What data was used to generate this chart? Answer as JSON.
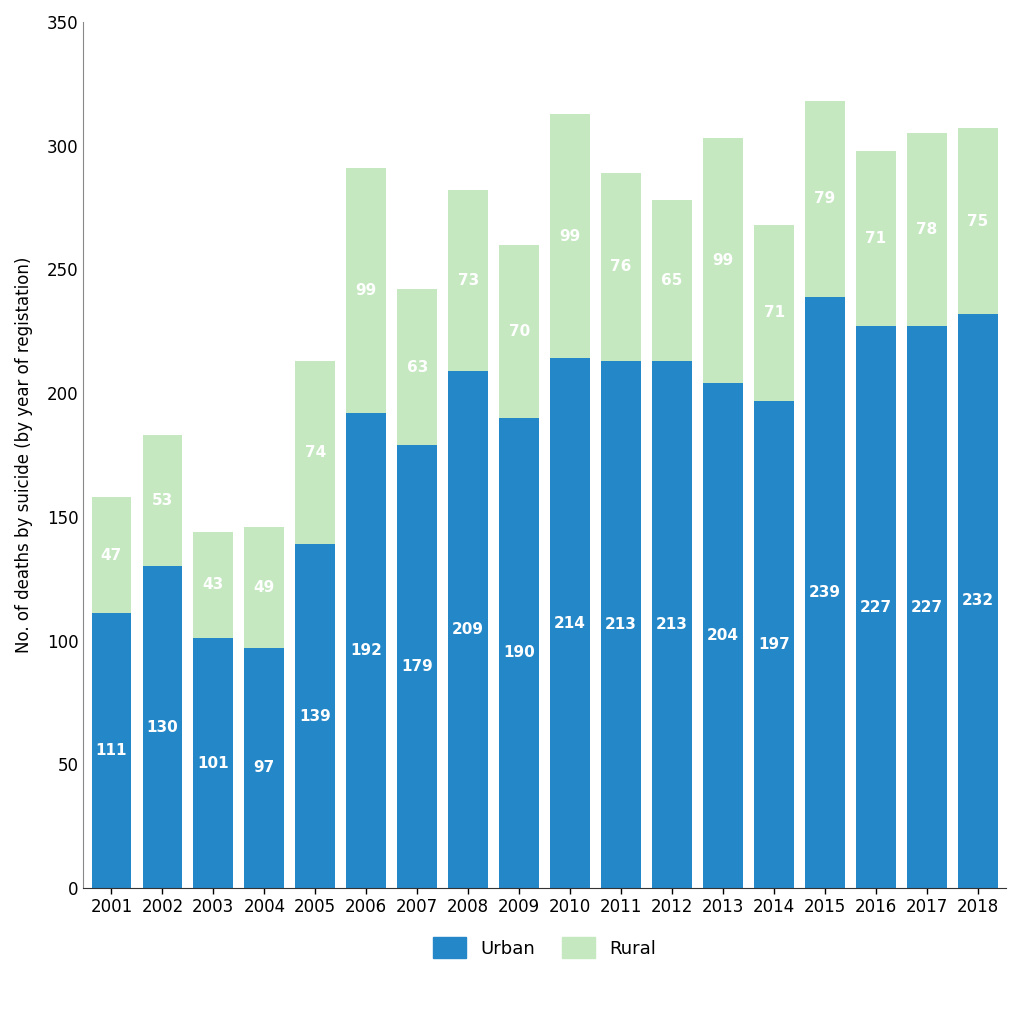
{
  "years": [
    2001,
    2002,
    2003,
    2004,
    2005,
    2006,
    2007,
    2008,
    2009,
    2010,
    2011,
    2012,
    2013,
    2014,
    2015,
    2016,
    2017,
    2018
  ],
  "urban": [
    111,
    130,
    101,
    97,
    139,
    192,
    179,
    209,
    190,
    214,
    213,
    213,
    204,
    197,
    239,
    227,
    227,
    232
  ],
  "rural": [
    47,
    53,
    43,
    49,
    74,
    99,
    63,
    73,
    70,
    99,
    76,
    65,
    99,
    71,
    79,
    71,
    78,
    75
  ],
  "urban_color": "#2387C8",
  "rural_color": "#C5E8C0",
  "ylabel": "No. of deaths by suicide (by year of registation)",
  "ylim": [
    0,
    350
  ],
  "yticks": [
    0,
    50,
    100,
    150,
    200,
    250,
    300,
    350
  ],
  "legend_urban": "Urban",
  "legend_rural": "Rural",
  "urban_label_color": "white",
  "rural_label_color": "white",
  "bar_width": 0.78,
  "background_color": "white",
  "label_fontsize": 11,
  "axis_fontsize": 12,
  "ylabel_fontsize": 12
}
